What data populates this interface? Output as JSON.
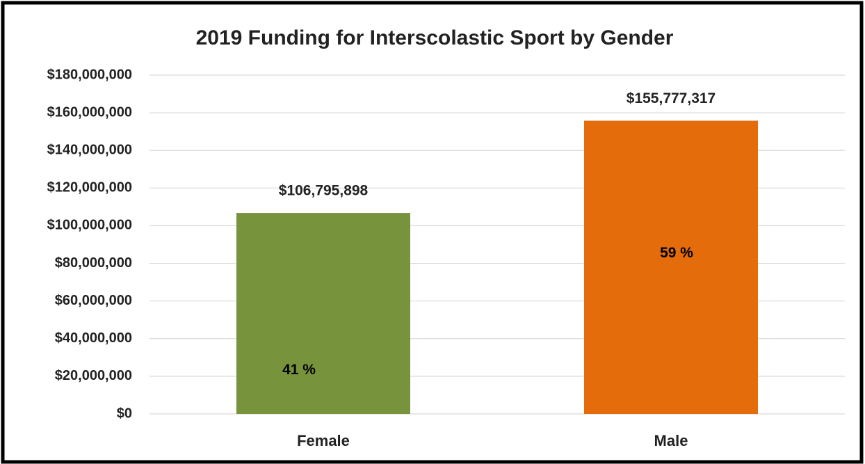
{
  "chart_data": {
    "type": "bar",
    "title": "2019 Funding for Interscolastic Sport by Gender",
    "categories": [
      "Female",
      "Male"
    ],
    "values": [
      106795898,
      155777317
    ],
    "value_labels": [
      "$106,795,898",
      "$155,777,317"
    ],
    "colors": [
      "#77933c",
      "#e46c0a"
    ],
    "annotations": [
      {
        "value": 41,
        "label": "41 %"
      },
      {
        "value": 59,
        "label": "59 %"
      }
    ],
    "ylim": [
      0,
      180000000
    ],
    "yticks": [
      {
        "value": 0,
        "label": "$0"
      },
      {
        "value": 20000000,
        "label": "$20,000,000"
      },
      {
        "value": 40000000,
        "label": "$40,000,000"
      },
      {
        "value": 60000000,
        "label": "$60,000,000"
      },
      {
        "value": 80000000,
        "label": "$80,000,000"
      },
      {
        "value": 100000000,
        "label": "$100,000,000"
      },
      {
        "value": 120000000,
        "label": "$120,000,000"
      },
      {
        "value": 140000000,
        "label": "$140,000,000"
      },
      {
        "value": 160000000,
        "label": "$160,000,000"
      },
      {
        "value": 180000000,
        "label": "$180,000,000"
      }
    ],
    "grid": true
  }
}
